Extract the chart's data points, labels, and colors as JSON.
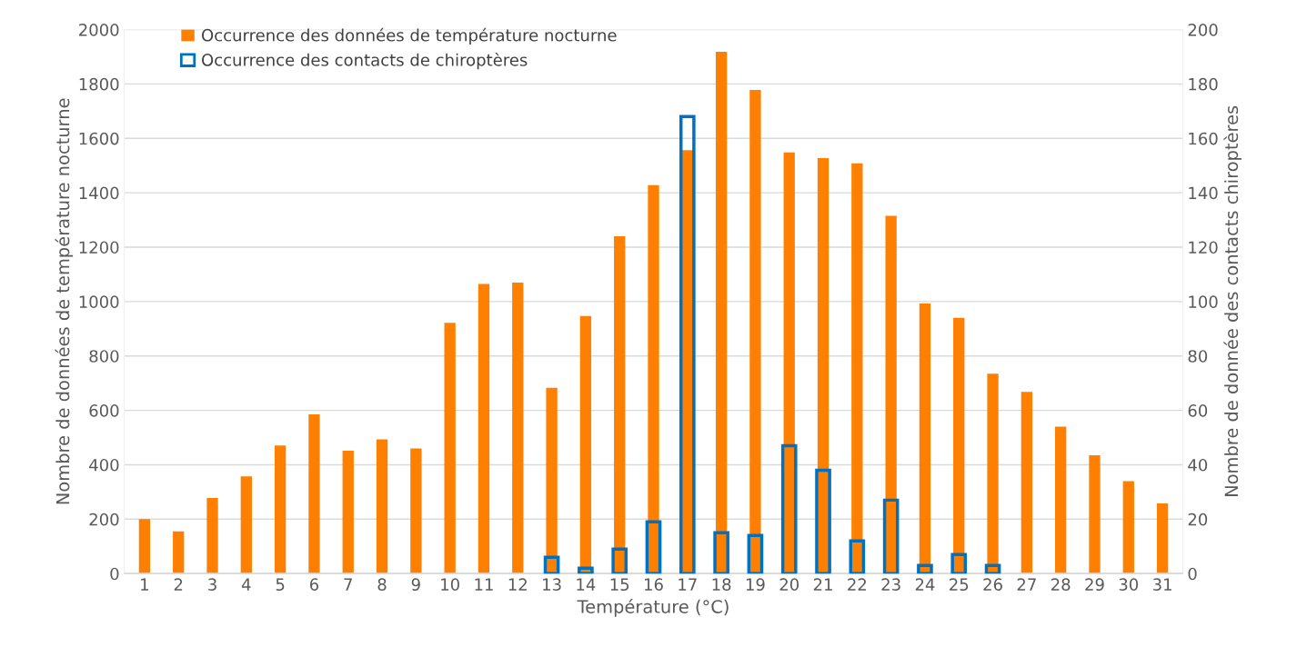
{
  "chart_data": {
    "type": "bar",
    "xlabel": "Température (°C)",
    "ylabel": "Nombre de données de température nocturne",
    "y2label": "Nombre de donnée des contacts chiroptères",
    "categories": [
      "1",
      "2",
      "3",
      "4",
      "5",
      "6",
      "7",
      "8",
      "9",
      "10",
      "11",
      "12",
      "13",
      "14",
      "15",
      "16",
      "17",
      "18",
      "19",
      "20",
      "21",
      "22",
      "23",
      "24",
      "25",
      "26",
      "27",
      "28",
      "29",
      "30",
      "31"
    ],
    "series": [
      {
        "name": "Occurrence des données de température nocturne",
        "color": "#ff7f00",
        "values": [
          200,
          155,
          278,
          357,
          471,
          585,
          452,
          493,
          460,
          922,
          1065,
          1070,
          683,
          947,
          1240,
          1428,
          1557,
          1918,
          1778,
          1548,
          1527,
          1508,
          1315,
          993,
          940,
          735,
          668,
          540,
          435,
          340,
          258
        ]
      },
      {
        "name": "Occurrence des contacts de chiroptères",
        "color": "#0070c0",
        "axis": "y2",
        "values": [
          null,
          null,
          null,
          null,
          null,
          null,
          null,
          null,
          null,
          null,
          null,
          null,
          6,
          2,
          9,
          19,
          168,
          15,
          14,
          47,
          38,
          12,
          27,
          3,
          7,
          3,
          null,
          null,
          null,
          null,
          null
        ]
      }
    ],
    "ylim": [
      0,
      2000
    ],
    "yticks": [
      0,
      200,
      400,
      600,
      800,
      1000,
      1200,
      1400,
      1600,
      1800,
      2000
    ],
    "y2lim": [
      0,
      200
    ],
    "y2ticks": [
      0,
      20,
      40,
      60,
      80,
      100,
      120,
      140,
      160,
      180,
      200
    ],
    "grid": "y",
    "legend": "top left"
  }
}
